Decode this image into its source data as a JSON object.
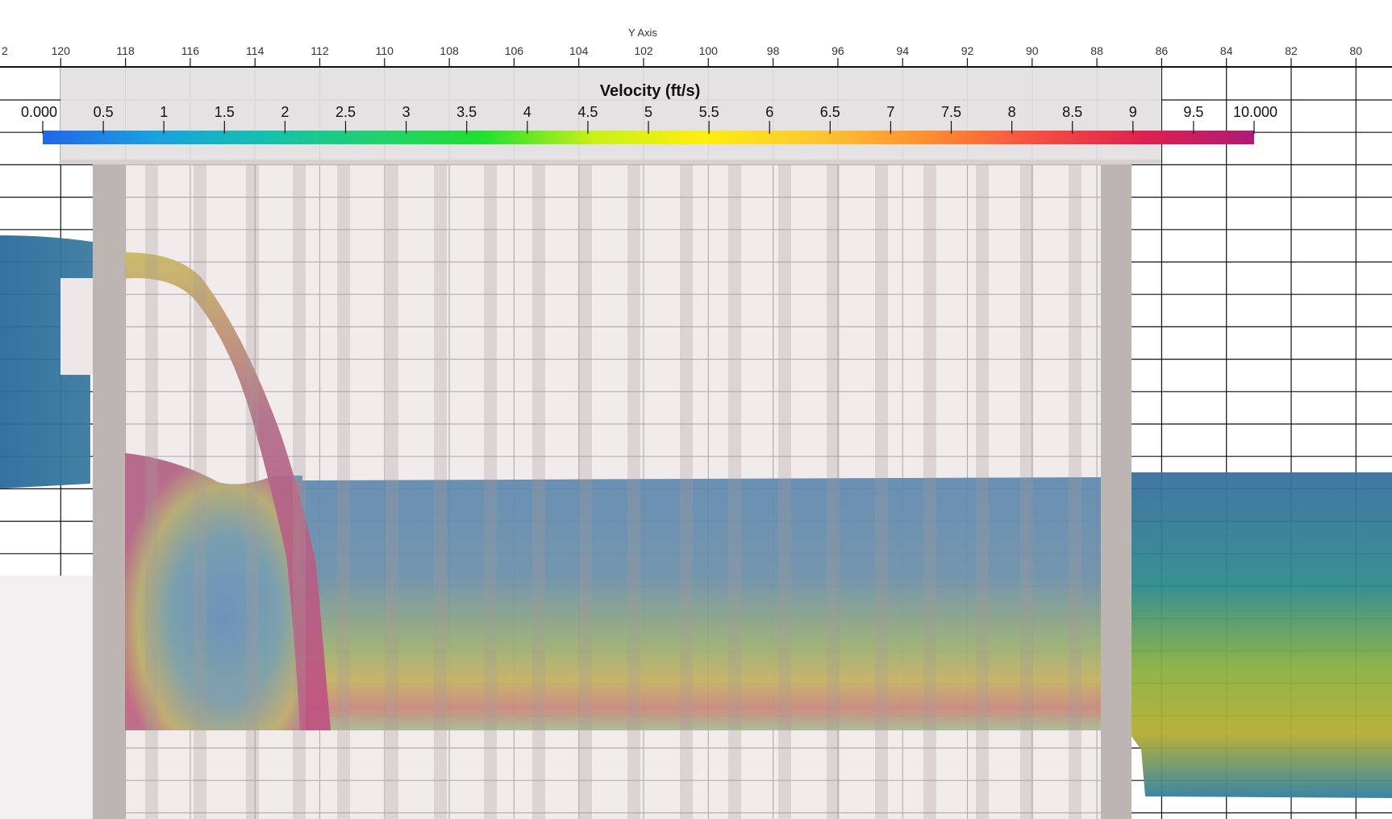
{
  "axis": {
    "title": "Y Axis",
    "ticks": [
      "2",
      "120",
      "118",
      "116",
      "114",
      "112",
      "110",
      "108",
      "106",
      "104",
      "102",
      "100",
      "98",
      "96",
      "94",
      "92",
      "90",
      "88",
      "86",
      "84",
      "82",
      "80"
    ]
  },
  "colorbar": {
    "title": "Velocity (ft/s)",
    "labels": [
      "0.000",
      "0.5",
      "1",
      "1.5",
      "2",
      "2.5",
      "3",
      "3.5",
      "4",
      "4.5",
      "5",
      "5.5",
      "6",
      "6.5",
      "7",
      "7.5",
      "8",
      "8.5",
      "9",
      "9.5",
      "10.000"
    ],
    "range": [
      0,
      10
    ],
    "colormap": [
      "#2166e8",
      "#1aa0e0",
      "#14c0b0",
      "#20d070",
      "#20e030",
      "#c8f018",
      "#ffee10",
      "#ffc830",
      "#ff9030",
      "#f55040",
      "#e02050",
      "#b01a78"
    ]
  },
  "colors": {
    "structure": "#bdb5b1",
    "background": "#ffffff",
    "grid": "#111111"
  }
}
